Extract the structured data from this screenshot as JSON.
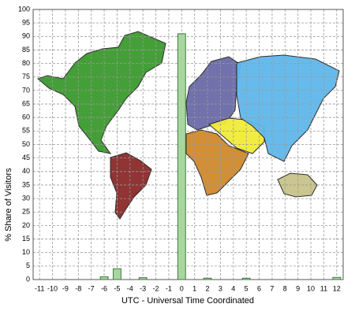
{
  "chart_data": {
    "type": "bar",
    "x_label": "UTC - Universal Time Coordinated",
    "y_label": "% Share of Visitors",
    "categories": [
      "-11",
      "-10",
      "-9",
      "-8",
      "-7",
      "-6",
      "-5",
      "-4",
      "-3",
      "-2",
      "-1",
      "0",
      "1",
      "2",
      "3",
      "4",
      "5",
      "6",
      "7",
      "8",
      "9",
      "10",
      "11",
      "12"
    ],
    "values": [
      0,
      0,
      0,
      0,
      0,
      1,
      4,
      0,
      0.7,
      0,
      0,
      91,
      0,
      0.5,
      0,
      0,
      0.5,
      0,
      0,
      0,
      0,
      0,
      0,
      0.8
    ],
    "color": "#a9d6a0",
    "ylim": [
      0,
      100
    ],
    "yticks": [
      0,
      5,
      10,
      15,
      20,
      25,
      30,
      35,
      40,
      45,
      50,
      55,
      60,
      65,
      70,
      75,
      80,
      85,
      90,
      95,
      100
    ],
    "grid": true
  }
}
